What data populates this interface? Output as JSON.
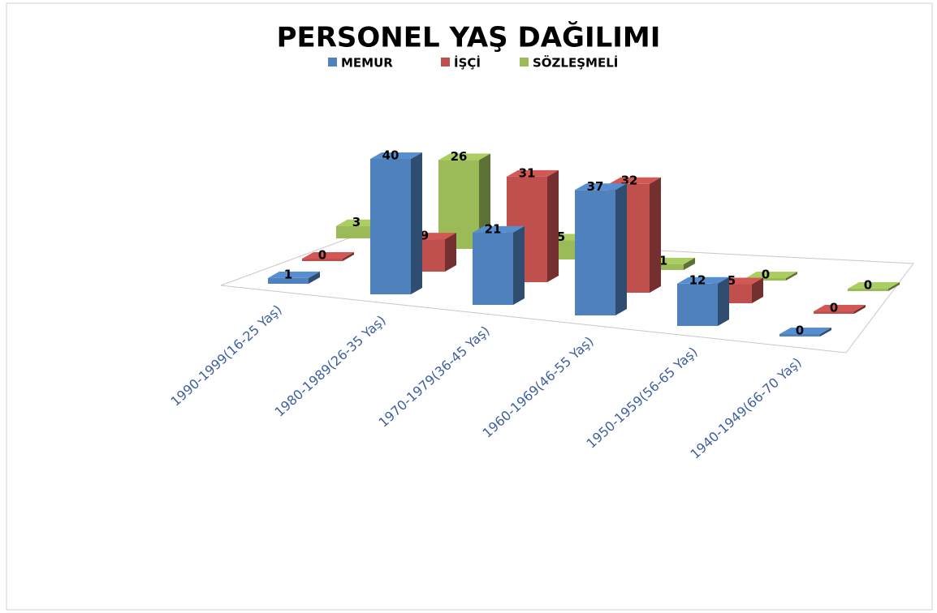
{
  "chart_data": {
    "type": "bar3d",
    "title": "PERSONEL YAŞ DAĞILIMI",
    "categories": [
      "1990-1999(16-25 Yaş)",
      "1980-1989(26-35 Yaş)",
      "1970-1979(36-45 Yaş)",
      "1960-1969(46-55 Yaş)",
      "1950-1959(56-65 Yaş)",
      "1940-1949(66-70 Yaş)"
    ],
    "series": [
      {
        "name": "MEMUR",
        "color": "#4f81bd",
        "values": [
          1,
          40,
          21,
          37,
          12,
          0
        ]
      },
      {
        "name": "İŞÇİ",
        "color": "#c0504d",
        "values": [
          0,
          9,
          31,
          32,
          5,
          0
        ]
      },
      {
        "name": "SÖZLEŞMELİ",
        "color": "#9bbb59",
        "values": [
          3,
          26,
          5,
          1,
          0,
          0
        ]
      }
    ],
    "legend": "top"
  }
}
